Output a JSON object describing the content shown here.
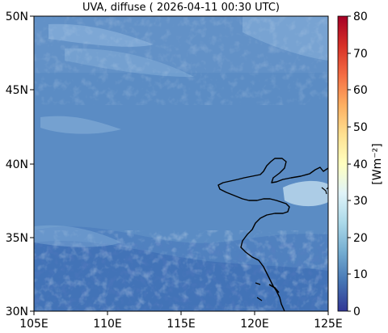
{
  "title": "UVA, diffuse ( 2026-04-11 00:30 UTC)",
  "map": {
    "projection": "PlateCarree",
    "lon_range": [
      105,
      125
    ],
    "lat_range": [
      30,
      50
    ],
    "x_ticks": [
      "105E",
      "110E",
      "115E",
      "120E",
      "125E"
    ],
    "y_ticks": [
      "30N",
      "35N",
      "40N",
      "45N",
      "50N"
    ],
    "field": "UVA diffuse irradiance",
    "background_color": "#5b8cc4",
    "coastline_color": "#000000"
  },
  "colorbar": {
    "label": "[Wm⁻²]",
    "ticks": [
      "0",
      "10",
      "20",
      "30",
      "40",
      "50",
      "60",
      "70",
      "80"
    ],
    "range": [
      0,
      80
    ],
    "colormap": "RdYlBu_r",
    "colors": [
      "#313695",
      "#4575b4",
      "#74add1",
      "#abd9e9",
      "#e0f3f8",
      "#ffffbf",
      "#fee090",
      "#fdae61",
      "#f46d43",
      "#d73027",
      "#a50026"
    ]
  }
}
